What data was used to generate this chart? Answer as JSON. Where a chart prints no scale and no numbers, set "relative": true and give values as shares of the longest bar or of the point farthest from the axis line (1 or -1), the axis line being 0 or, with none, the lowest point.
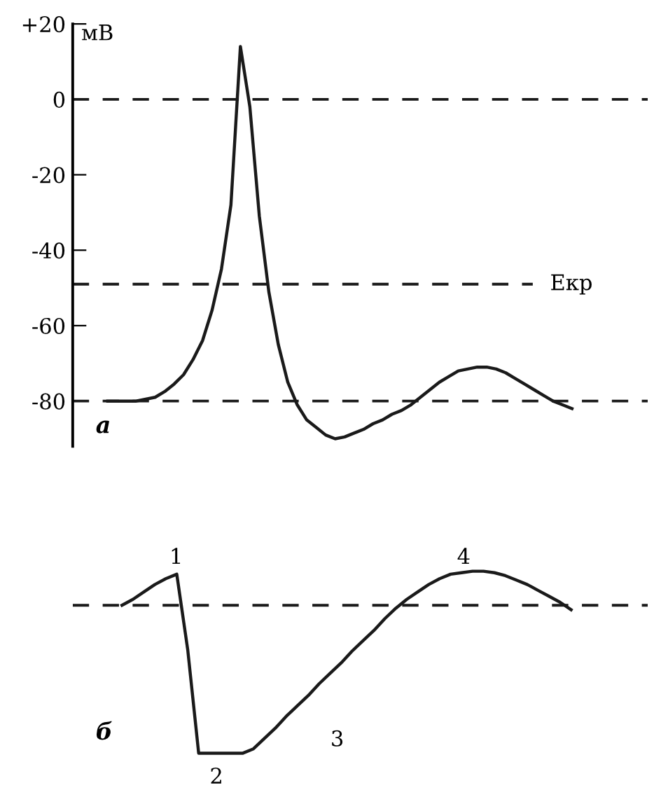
{
  "chart_data": [
    {
      "type": "line",
      "ylabel": "мВ",
      "categories": [
        null,
        null,
        null,
        null,
        null,
        null,
        null,
        null,
        null,
        null,
        null,
        null,
        null,
        null,
        null,
        null,
        null,
        null,
        null,
        null,
        null,
        null,
        null,
        null,
        null,
        null,
        null,
        null,
        null,
        null,
        null,
        null,
        null,
        null,
        null,
        null,
        null,
        null,
        null,
        null,
        null,
        null,
        null,
        null,
        null,
        null,
        null,
        null,
        null,
        null
      ],
      "series": [
        {
          "color": "#1a1a1a",
          "values": [
            -80,
            -80,
            -80,
            -80,
            -79.5,
            -79,
            -77.5,
            -75.5,
            -73,
            -69,
            -64,
            -56,
            -45,
            -28,
            14,
            -2,
            -31,
            -51,
            -65,
            -75,
            -81,
            -85,
            -87,
            -89,
            -90,
            -89.5,
            -88.5,
            -87.5,
            -86,
            -85,
            -83.5,
            -82.5,
            -81,
            -79,
            -77,
            -75,
            -73.5,
            -72,
            -71.5,
            -71,
            -71,
            -71.5,
            -72.5,
            -74,
            -75.5,
            -77,
            -78.5,
            -80,
            -81,
            -82
          ]
        }
      ],
      "ylim": [
        -92,
        20
      ],
      "yticks": [
        {
          "value": 20,
          "label": "+20"
        },
        0,
        -20,
        -40,
        -60,
        -80
      ],
      "tick_labels": "y",
      "ref_lines": [
        {
          "axis": "y",
          "value": 0,
          "line_style": "dashed",
          "color": "#1a1a1a"
        },
        {
          "axis": "y",
          "value": -49,
          "label": "Екр",
          "line_style": "dashed",
          "color": "#1a1a1a"
        },
        {
          "axis": "y",
          "value": -80,
          "line_style": "dashed",
          "color": "#1a1a1a"
        }
      ],
      "annotations": [
        "а"
      ],
      "line_style": "solid",
      "grid": false,
      "legend": false
    },
    {
      "type": "line",
      "relative": true,
      "categories": [
        null,
        null,
        null,
        null,
        null,
        null,
        null,
        null,
        null,
        null,
        null,
        null,
        null,
        null,
        null,
        null,
        null,
        null,
        null,
        null,
        null,
        null,
        null,
        null,
        null,
        null,
        null,
        null,
        null,
        null,
        null,
        null,
        null,
        null,
        null,
        null,
        null,
        null,
        null,
        null,
        null,
        null
      ],
      "series": [
        {
          "color": "#1a1a1a",
          "values": [
            0,
            0.04,
            0.09,
            0.14,
            0.18,
            0.21,
            -0.3,
            -1,
            -1,
            -1,
            -1,
            -1,
            -0.97,
            -0.9,
            -0.83,
            -0.75,
            -0.68,
            -0.61,
            -0.53,
            -0.46,
            -0.39,
            -0.31,
            -0.24,
            -0.17,
            -0.09,
            -0.02,
            0.04,
            0.09,
            0.14,
            0.18,
            0.21,
            0.22,
            0.23,
            0.23,
            0.22,
            0.2,
            0.17,
            0.14,
            0.1,
            0.06,
            0.02,
            -0.03
          ],
          "name": null
        }
      ],
      "ref_lines": [
        {
          "axis": "y",
          "value": 0,
          "line_style": "dashed",
          "color": "#1a1a1a"
        }
      ],
      "tick_labels": false,
      "annotations": [
        "б",
        "1",
        "2",
        "3",
        "4"
      ],
      "line_style": "solid",
      "grid": false,
      "legend": false
    }
  ]
}
